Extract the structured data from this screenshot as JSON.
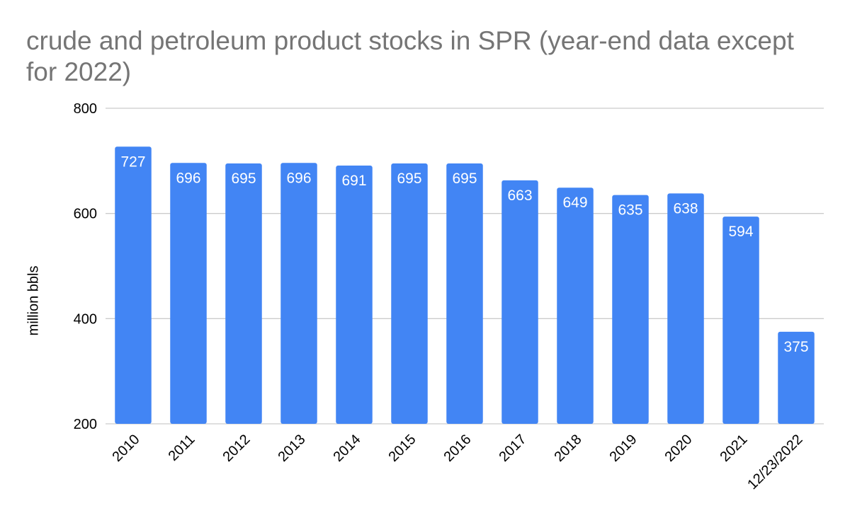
{
  "chart_data": {
    "type": "bar",
    "title": "crude and petroleum product stocks in SPR (year-end data except for 2022)",
    "ylabel": "million bbls",
    "xlabel": "",
    "categories": [
      "2010",
      "2011",
      "2012",
      "2013",
      "2014",
      "2015",
      "2016",
      "2017",
      "2018",
      "2019",
      "2020",
      "2021",
      "12/23/2022"
    ],
    "values": [
      727,
      696,
      695,
      696,
      691,
      695,
      695,
      663,
      649,
      635,
      638,
      594,
      375
    ],
    "ylim": [
      200,
      800
    ],
    "yticks": [
      "200",
      "400",
      "600",
      "800"
    ],
    "grid": true,
    "bar_color": "#4285f4",
    "label_color": "#ffffff",
    "gridline_color": "#cccccc"
  }
}
